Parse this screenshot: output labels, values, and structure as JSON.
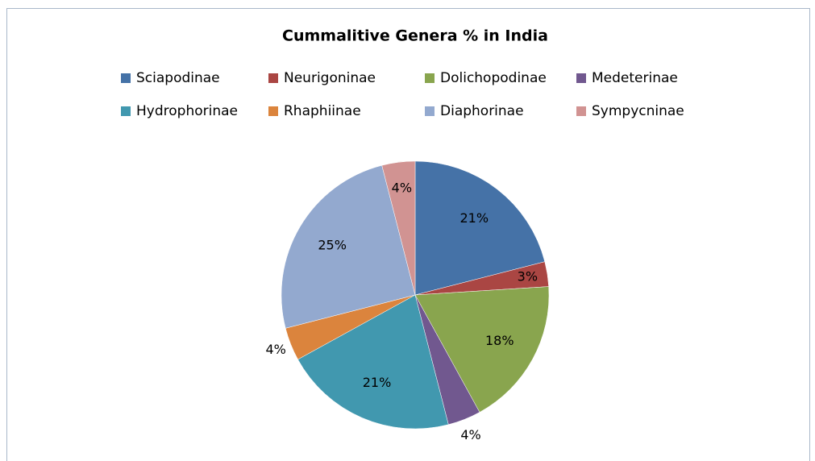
{
  "chart_data": {
    "type": "pie",
    "title": "Cummalitive Genera % in India",
    "categories": [
      "Sciapodinae",
      "Neurigoninae",
      "Dolichopodinae",
      "Medeterinae",
      "Hydrophorinae",
      "Rhaphiinae",
      "Diaphorinae",
      "Sympycninae"
    ],
    "values": [
      21,
      3,
      18,
      4,
      21,
      4,
      25,
      4
    ],
    "value_labels": [
      "21%",
      "3%",
      "18%",
      "4%",
      "21%",
      "4%",
      "25%",
      "4%"
    ],
    "colors": [
      "#4572a7",
      "#aa4643",
      "#89a54e",
      "#71588f",
      "#4198af",
      "#db843d",
      "#93a9cf",
      "#d19392"
    ],
    "legend": "top"
  }
}
